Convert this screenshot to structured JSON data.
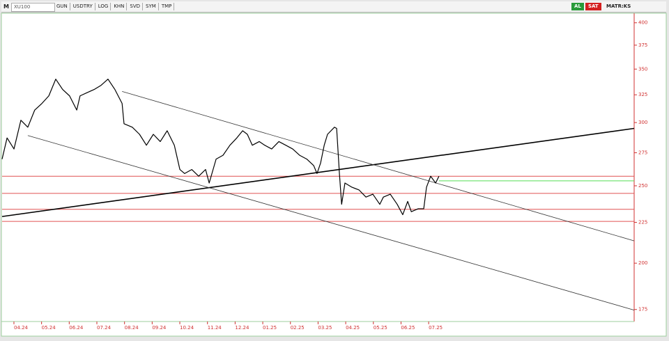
{
  "toolbar": {
    "symbol": "XU100",
    "buttons": [
      "GUN",
      "USDTRY",
      "LOG",
      "KHN",
      "SVD",
      "SYM",
      "TMP"
    ],
    "buy": "AL",
    "sell": "SAT",
    "mode": "MATR:KS"
  },
  "chart_data": {
    "type": "line",
    "x": [
      -0.68,
      -0.5,
      -0.25,
      0,
      0.25,
      0.5,
      0.76,
      1.01,
      1.26,
      1.51,
      1.76,
      2.02,
      2.14,
      2.39,
      2.65,
      2.9,
      3.15,
      3.4,
      3.66,
      3.73,
      4.03,
      4.29,
      4.54,
      4.79,
      5.04,
      5.29,
      5.55,
      5.75,
      5.92,
      6.18,
      6.43,
      6.68,
      6.81,
      7.06,
      7.31,
      7.56,
      7.81,
      8.02,
      8.19,
      8.37,
      8.62,
      8.82,
      9.07,
      9.33,
      9.58,
      9.83,
      10.08,
      10.34,
      10.59,
      10.71,
      10.84,
      10.97,
      11.09,
      11.34,
      11.42,
      11.52,
      11.6,
      11.72,
      11.97,
      12.23,
      12.48,
      12.73,
      12.98,
      13.11,
      13.36,
      13.61,
      13.81,
      13.99,
      14.12,
      14.37,
      14.57,
      14.67,
      14.82,
      15,
      15.12
    ],
    "series": [
      {
        "color": "#000000",
        "values": [
          270,
          287,
          278,
          302,
          296,
          311,
          317,
          324,
          340,
          330,
          324,
          311,
          324,
          327,
          330,
          334,
          340,
          330,
          317,
          299,
          296,
          290,
          281,
          290,
          284,
          293,
          281,
          262,
          259,
          262,
          257,
          262,
          252,
          270,
          273,
          281,
          287,
          293,
          290,
          281,
          284,
          281,
          278,
          284,
          281,
          278,
          273,
          270,
          265,
          259,
          267,
          281,
          290,
          296,
          295,
          259,
          237,
          252,
          249,
          247,
          242,
          244,
          237,
          242,
          244,
          237,
          230,
          239,
          232,
          234,
          234,
          249,
          257,
          252,
          257
        ]
      }
    ],
    "xlim": [
      -0.68,
      22.18
    ],
    "xticks": [
      {
        "value": 0,
        "label": "04.24"
      },
      {
        "value": 1,
        "label": "05.24"
      },
      {
        "value": 2,
        "label": "06.24"
      },
      {
        "value": 3,
        "label": "07.24"
      },
      {
        "value": 4,
        "label": "08.24"
      },
      {
        "value": 5,
        "label": "09.24"
      },
      {
        "value": 6,
        "label": "10.24"
      },
      {
        "value": 7,
        "label": "11.24"
      },
      {
        "value": 8,
        "label": "12.24"
      },
      {
        "value": 9,
        "label": "01.25"
      },
      {
        "value": 10,
        "label": "02.25"
      },
      {
        "value": 11,
        "label": "03.25"
      },
      {
        "value": 12,
        "label": "04.25"
      },
      {
        "value": 13,
        "label": "05.25"
      },
      {
        "value": 14,
        "label": "06.25"
      },
      {
        "value": 15,
        "label": "07.25"
      }
    ],
    "ylim": [
      170.4,
      412
    ],
    "yticks": [
      175,
      200,
      225,
      250,
      275,
      300,
      325,
      350,
      375,
      400
    ],
    "yscale": "log",
    "trend_lines": [
      {
        "x": [
          -0.68,
          22.18
        ],
        "y": [
          228.8,
          295
        ],
        "color": "#000000",
        "width": 1.6
      },
      {
        "x": [
          3.66,
          22.18
        ],
        "y": [
          328.2,
          213.3
        ],
        "color": "#333333",
        "width": 0.8
      },
      {
        "x": [
          0.25,
          22.18
        ],
        "y": [
          289,
          174.7
        ],
        "color": "#333333",
        "width": 0.8
      }
    ],
    "levels": [
      {
        "value": 257,
        "color": "#e05050"
      },
      {
        "value": 244.6,
        "color": "#e05050"
      },
      {
        "value": 233.6,
        "color": "#e05050"
      },
      {
        "value": 225.6,
        "color": "#e05050"
      },
      {
        "value": 253.6,
        "color": "#55dd55",
        "x": [
          15.12,
          22.18
        ]
      }
    ]
  }
}
